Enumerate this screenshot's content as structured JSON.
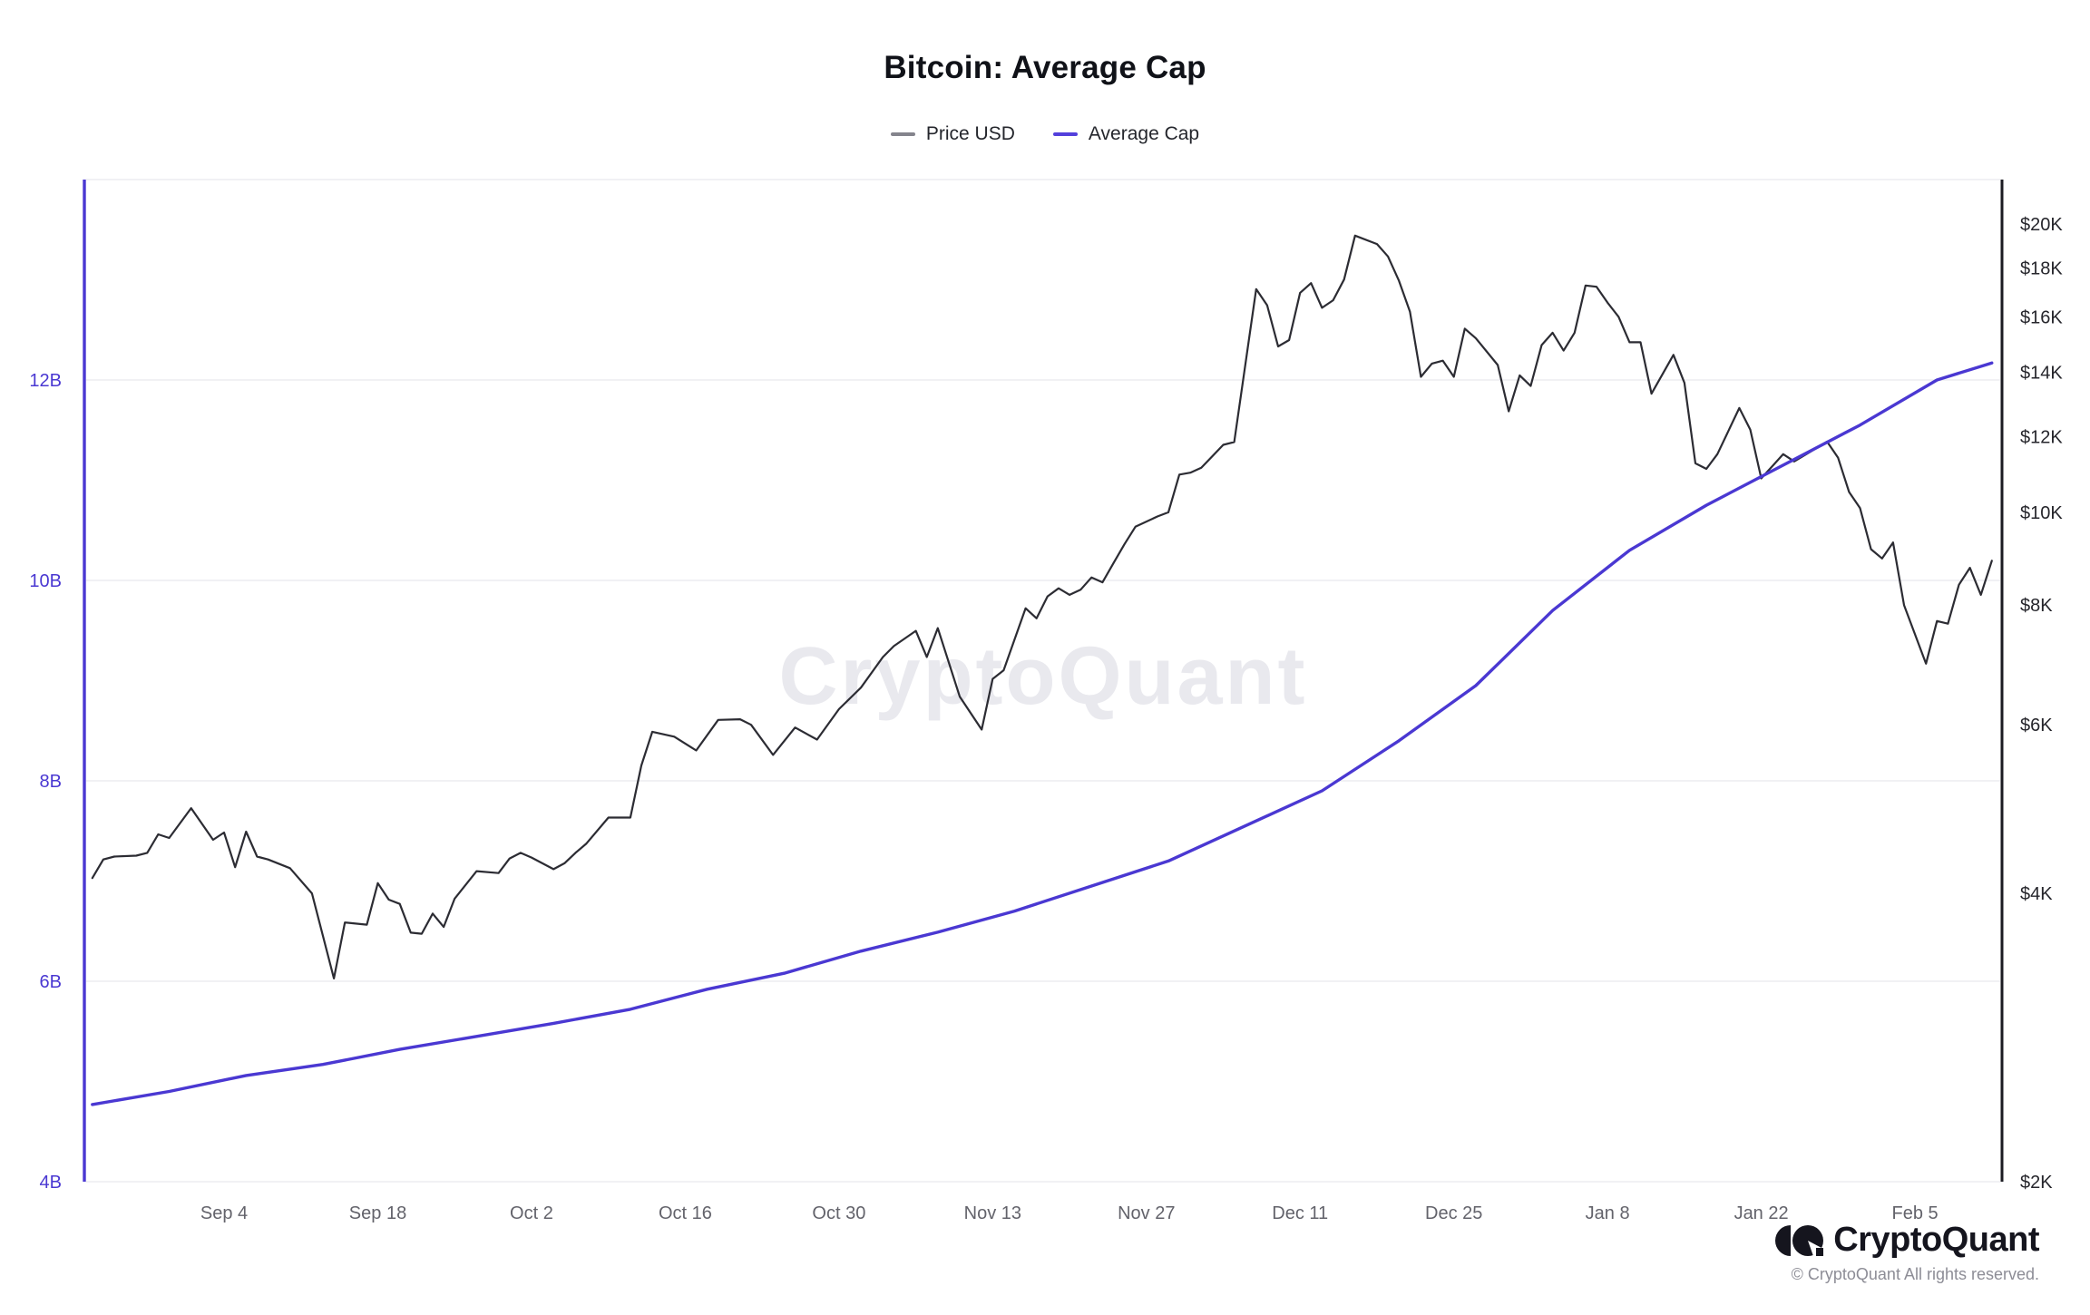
{
  "title": "Bitcoin: Average Cap",
  "legend": [
    {
      "label": "Price USD",
      "color": "#84848c"
    },
    {
      "label": "Average Cap",
      "color": "#5340dc"
    }
  ],
  "watermark": "CryptoQuant",
  "brand": {
    "name": "CryptoQuant",
    "copyright": "© CryptoQuant All rights reserved."
  },
  "chart_data": {
    "type": "line",
    "title": "Bitcoin: Average Cap",
    "legend_position": "top-center",
    "grid": "horizontal-only",
    "style": {
      "grid_color": "#f1f1f4",
      "left_axis_color": "#4a38d2",
      "right_axis_color": "#1b1b22",
      "left_tick_color": "#4a38d2",
      "right_tick_color": "#26262c",
      "x_tick_color": "#63636b",
      "watermark_color": "#e9e9ee",
      "background": "#ffffff"
    },
    "left_axis": {
      "title": "Average Cap (billions USD)",
      "scale": "linear",
      "range": [
        4,
        14
      ],
      "ticks": [
        {
          "label": "4B",
          "value": 4
        },
        {
          "label": "6B",
          "value": 6
        },
        {
          "label": "8B",
          "value": 8
        },
        {
          "label": "10B",
          "value": 10
        },
        {
          "label": "12B",
          "value": 12
        },
        {
          "label": "",
          "value": 14
        }
      ]
    },
    "right_axis": {
      "title": "Price USD (thousands)",
      "scale": "log",
      "range": [
        2,
        22.3
      ],
      "ticks": [
        {
          "label": "$2K",
          "value": 2
        },
        {
          "label": "$4K",
          "value": 4
        },
        {
          "label": "$6K",
          "value": 6
        },
        {
          "label": "$8K",
          "value": 8
        },
        {
          "label": "$10K",
          "value": 10
        },
        {
          "label": "$12K",
          "value": 12
        },
        {
          "label": "$14K",
          "value": 14
        },
        {
          "label": "$16K",
          "value": 16
        },
        {
          "label": "$18K",
          "value": 18
        },
        {
          "label": "$20K",
          "value": 20
        }
      ]
    },
    "x_axis": {
      "unit": "date",
      "start": "Aug 23",
      "end": "Feb 12",
      "tick_labels": [
        "Sep 4",
        "Sep 18",
        "Oct 2",
        "Oct 16",
        "Oct 30",
        "Nov 13",
        "Nov 27",
        "Dec 11",
        "Dec 25",
        "Jan 8",
        "Jan 22",
        "Feb 5"
      ]
    },
    "series": [
      {
        "name": "Price USD",
        "axis": "right",
        "color": "#2c2c33",
        "width": 2.2,
        "points": [
          [
            "Aug 23",
            4.15
          ],
          [
            "Aug 24",
            4.34
          ],
          [
            "Aug 25",
            4.37
          ],
          [
            "Aug 27",
            4.38
          ],
          [
            "Aug 28",
            4.41
          ],
          [
            "Aug 29",
            4.61
          ],
          [
            "Aug 30",
            4.57
          ],
          [
            "Sep 1",
            4.91
          ],
          [
            "Sep 3",
            4.55
          ],
          [
            "Sep 4",
            4.63
          ],
          [
            "Sep 5",
            4.26
          ],
          [
            "Sep 6",
            4.64
          ],
          [
            "Sep 7",
            4.37
          ],
          [
            "Sep 8",
            4.34
          ],
          [
            "Sep 10",
            4.25
          ],
          [
            "Sep 12",
            4.0
          ],
          [
            "Sep 14",
            3.26
          ],
          [
            "Sep 15",
            3.73
          ],
          [
            "Sep 17",
            3.71
          ],
          [
            "Sep 18",
            4.1
          ],
          [
            "Sep 19",
            3.94
          ],
          [
            "Sep 20",
            3.9
          ],
          [
            "Sep 21",
            3.64
          ],
          [
            "Sep 22",
            3.63
          ],
          [
            "Sep 23",
            3.81
          ],
          [
            "Sep 24",
            3.69
          ],
          [
            "Sep 25",
            3.95
          ],
          [
            "Sep 27",
            4.22
          ],
          [
            "Sep 29",
            4.2
          ],
          [
            "Sep 30",
            4.35
          ],
          [
            "Oct 1",
            4.41
          ],
          [
            "Oct 2",
            4.36
          ],
          [
            "Oct 4",
            4.24
          ],
          [
            "Oct 5",
            4.3
          ],
          [
            "Oct 6",
            4.41
          ],
          [
            "Oct 7",
            4.51
          ],
          [
            "Oct 9",
            4.8
          ],
          [
            "Oct 11",
            4.8
          ],
          [
            "Oct 12",
            5.44
          ],
          [
            "Oct 13",
            5.9
          ],
          [
            "Oct 15",
            5.83
          ],
          [
            "Oct 17",
            5.64
          ],
          [
            "Oct 19",
            6.07
          ],
          [
            "Oct 21",
            6.08
          ],
          [
            "Oct 22",
            6.0
          ],
          [
            "Oct 24",
            5.58
          ],
          [
            "Oct 26",
            5.96
          ],
          [
            "Oct 28",
            5.79
          ],
          [
            "Oct 30",
            6.23
          ],
          [
            "Nov 1",
            6.56
          ],
          [
            "Nov 3",
            7.06
          ],
          [
            "Nov 4",
            7.25
          ],
          [
            "Nov 6",
            7.52
          ],
          [
            "Nov 7",
            7.06
          ],
          [
            "Nov 8",
            7.57
          ],
          [
            "Nov 10",
            6.42
          ],
          [
            "Nov 12",
            5.93
          ],
          [
            "Nov 13",
            6.7
          ],
          [
            "Nov 14",
            6.84
          ],
          [
            "Nov 16",
            7.94
          ],
          [
            "Nov 17",
            7.75
          ],
          [
            "Nov 18",
            8.17
          ],
          [
            "Nov 19",
            8.33
          ],
          [
            "Nov 20",
            8.2
          ],
          [
            "Nov 21",
            8.3
          ],
          [
            "Nov 22",
            8.55
          ],
          [
            "Nov 23",
            8.45
          ],
          [
            "Nov 24",
            8.85
          ],
          [
            "Nov 25",
            9.26
          ],
          [
            "Nov 26",
            9.66
          ],
          [
            "Nov 28",
            9.9
          ],
          [
            "Nov 29",
            10.0
          ],
          [
            "Nov 30",
            10.95
          ],
          [
            "Dec 1",
            11.0
          ],
          [
            "Dec 2",
            11.13
          ],
          [
            "Dec 4",
            11.76
          ],
          [
            "Dec 5",
            11.84
          ],
          [
            "Dec 7",
            17.1
          ],
          [
            "Dec 8",
            16.45
          ],
          [
            "Dec 9",
            14.9
          ],
          [
            "Dec 10",
            15.13
          ],
          [
            "Dec 11",
            16.95
          ],
          [
            "Dec 12",
            17.35
          ],
          [
            "Dec 13",
            16.35
          ],
          [
            "Dec 14",
            16.65
          ],
          [
            "Dec 15",
            17.5
          ],
          [
            "Dec 16",
            19.45
          ],
          [
            "Dec 18",
            19.06
          ],
          [
            "Dec 19",
            18.5
          ],
          [
            "Dec 20",
            17.45
          ],
          [
            "Dec 21",
            16.2
          ],
          [
            "Dec 22",
            13.85
          ],
          [
            "Dec 23",
            14.3
          ],
          [
            "Dec 24",
            14.4
          ],
          [
            "Dec 25",
            13.85
          ],
          [
            "Dec 26",
            15.55
          ],
          [
            "Dec 27",
            15.2
          ],
          [
            "Dec 29",
            14.25
          ],
          [
            "Dec 30",
            12.75
          ],
          [
            "Dec 31",
            13.9
          ],
          [
            "Jan 1",
            13.55
          ],
          [
            "Jan 2",
            14.95
          ],
          [
            "Jan 3",
            15.4
          ],
          [
            "Jan 4",
            14.75
          ],
          [
            "Jan 5",
            15.4
          ],
          [
            "Jan 6",
            17.25
          ],
          [
            "Jan 7",
            17.2
          ],
          [
            "Jan 8",
            16.55
          ],
          [
            "Jan 9",
            16.0
          ],
          [
            "Jan 10",
            15.05
          ],
          [
            "Jan 11",
            15.05
          ],
          [
            "Jan 12",
            13.3
          ],
          [
            "Jan 14",
            14.6
          ],
          [
            "Jan 15",
            13.65
          ],
          [
            "Jan 16",
            11.25
          ],
          [
            "Jan 17",
            11.1
          ],
          [
            "Jan 18",
            11.5
          ],
          [
            "Jan 20",
            12.85
          ],
          [
            "Jan 21",
            12.2
          ],
          [
            "Jan 22",
            10.85
          ],
          [
            "Jan 24",
            11.5
          ],
          [
            "Jan 25",
            11.3
          ],
          [
            "Jan 28",
            11.85
          ],
          [
            "Jan 29",
            11.4
          ],
          [
            "Jan 30",
            10.5
          ],
          [
            "Jan 31",
            10.1
          ],
          [
            "Feb 1",
            9.15
          ],
          [
            "Feb 2",
            8.95
          ],
          [
            "Feb 3",
            9.3
          ],
          [
            "Feb 4",
            8.0
          ],
          [
            "Feb 6",
            6.95
          ],
          [
            "Feb 7",
            7.7
          ],
          [
            "Feb 8",
            7.65
          ],
          [
            "Feb 9",
            8.4
          ],
          [
            "Feb 10",
            8.75
          ],
          [
            "Feb 11",
            8.2
          ],
          [
            "Feb 12",
            8.9
          ]
        ]
      },
      {
        "name": "Average Cap",
        "axis": "left",
        "color": "#4a38d2",
        "width": 3.4,
        "points": [
          [
            "Aug 23",
            4.77
          ],
          [
            "Aug 30",
            4.9
          ],
          [
            "Sep 6",
            5.06
          ],
          [
            "Sep 13",
            5.17
          ],
          [
            "Sep 20",
            5.32
          ],
          [
            "Sep 27",
            5.45
          ],
          [
            "Oct 4",
            5.58
          ],
          [
            "Oct 11",
            5.72
          ],
          [
            "Oct 18",
            5.92
          ],
          [
            "Oct 25",
            6.08
          ],
          [
            "Nov 1",
            6.3
          ],
          [
            "Nov 8",
            6.49
          ],
          [
            "Nov 15",
            6.7
          ],
          [
            "Nov 22",
            6.95
          ],
          [
            "Nov 29",
            7.2
          ],
          [
            "Dec 6",
            7.55
          ],
          [
            "Dec 13",
            7.9
          ],
          [
            "Dec 20",
            8.4
          ],
          [
            "Dec 27",
            8.95
          ],
          [
            "Jan 3",
            9.7
          ],
          [
            "Jan 10",
            10.3
          ],
          [
            "Jan 17",
            10.75
          ],
          [
            "Jan 24",
            11.15
          ],
          [
            "Jan 31",
            11.55
          ],
          [
            "Feb 7",
            12.0
          ],
          [
            "Feb 12",
            12.17
          ]
        ]
      }
    ]
  }
}
